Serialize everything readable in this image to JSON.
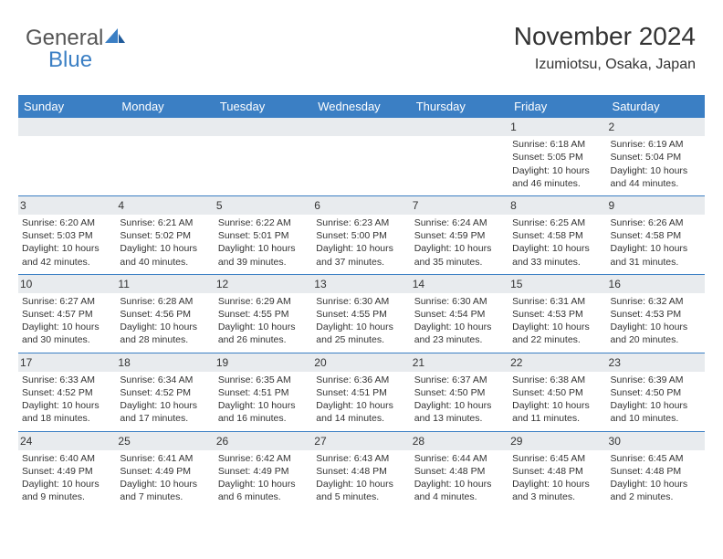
{
  "logo": {
    "text_gray": "General",
    "text_blue": "Blue"
  },
  "header": {
    "month_title": "November 2024",
    "location": "Izumiotsu, Osaka, Japan"
  },
  "day_headers": [
    "Sunday",
    "Monday",
    "Tuesday",
    "Wednesday",
    "Thursday",
    "Friday",
    "Saturday"
  ],
  "colors": {
    "header_bg": "#3b7fc4",
    "header_fg": "#ffffff",
    "row_line": "#3b7fc4",
    "daynum_bg": "#e8ebee",
    "text": "#333333",
    "logo_gray": "#555555",
    "logo_blue": "#3b7fc4",
    "background": "#ffffff"
  },
  "weeks": [
    [
      {
        "n": "",
        "sr": "",
        "ss": "",
        "dl1": "",
        "dl2": ""
      },
      {
        "n": "",
        "sr": "",
        "ss": "",
        "dl1": "",
        "dl2": ""
      },
      {
        "n": "",
        "sr": "",
        "ss": "",
        "dl1": "",
        "dl2": ""
      },
      {
        "n": "",
        "sr": "",
        "ss": "",
        "dl1": "",
        "dl2": ""
      },
      {
        "n": "",
        "sr": "",
        "ss": "",
        "dl1": "",
        "dl2": ""
      },
      {
        "n": "1",
        "sr": "Sunrise: 6:18 AM",
        "ss": "Sunset: 5:05 PM",
        "dl1": "Daylight: 10 hours",
        "dl2": "and 46 minutes."
      },
      {
        "n": "2",
        "sr": "Sunrise: 6:19 AM",
        "ss": "Sunset: 5:04 PM",
        "dl1": "Daylight: 10 hours",
        "dl2": "and 44 minutes."
      }
    ],
    [
      {
        "n": "3",
        "sr": "Sunrise: 6:20 AM",
        "ss": "Sunset: 5:03 PM",
        "dl1": "Daylight: 10 hours",
        "dl2": "and 42 minutes."
      },
      {
        "n": "4",
        "sr": "Sunrise: 6:21 AM",
        "ss": "Sunset: 5:02 PM",
        "dl1": "Daylight: 10 hours",
        "dl2": "and 40 minutes."
      },
      {
        "n": "5",
        "sr": "Sunrise: 6:22 AM",
        "ss": "Sunset: 5:01 PM",
        "dl1": "Daylight: 10 hours",
        "dl2": "and 39 minutes."
      },
      {
        "n": "6",
        "sr": "Sunrise: 6:23 AM",
        "ss": "Sunset: 5:00 PM",
        "dl1": "Daylight: 10 hours",
        "dl2": "and 37 minutes."
      },
      {
        "n": "7",
        "sr": "Sunrise: 6:24 AM",
        "ss": "Sunset: 4:59 PM",
        "dl1": "Daylight: 10 hours",
        "dl2": "and 35 minutes."
      },
      {
        "n": "8",
        "sr": "Sunrise: 6:25 AM",
        "ss": "Sunset: 4:58 PM",
        "dl1": "Daylight: 10 hours",
        "dl2": "and 33 minutes."
      },
      {
        "n": "9",
        "sr": "Sunrise: 6:26 AM",
        "ss": "Sunset: 4:58 PM",
        "dl1": "Daylight: 10 hours",
        "dl2": "and 31 minutes."
      }
    ],
    [
      {
        "n": "10",
        "sr": "Sunrise: 6:27 AM",
        "ss": "Sunset: 4:57 PM",
        "dl1": "Daylight: 10 hours",
        "dl2": "and 30 minutes."
      },
      {
        "n": "11",
        "sr": "Sunrise: 6:28 AM",
        "ss": "Sunset: 4:56 PM",
        "dl1": "Daylight: 10 hours",
        "dl2": "and 28 minutes."
      },
      {
        "n": "12",
        "sr": "Sunrise: 6:29 AM",
        "ss": "Sunset: 4:55 PM",
        "dl1": "Daylight: 10 hours",
        "dl2": "and 26 minutes."
      },
      {
        "n": "13",
        "sr": "Sunrise: 6:30 AM",
        "ss": "Sunset: 4:55 PM",
        "dl1": "Daylight: 10 hours",
        "dl2": "and 25 minutes."
      },
      {
        "n": "14",
        "sr": "Sunrise: 6:30 AM",
        "ss": "Sunset: 4:54 PM",
        "dl1": "Daylight: 10 hours",
        "dl2": "and 23 minutes."
      },
      {
        "n": "15",
        "sr": "Sunrise: 6:31 AM",
        "ss": "Sunset: 4:53 PM",
        "dl1": "Daylight: 10 hours",
        "dl2": "and 22 minutes."
      },
      {
        "n": "16",
        "sr": "Sunrise: 6:32 AM",
        "ss": "Sunset: 4:53 PM",
        "dl1": "Daylight: 10 hours",
        "dl2": "and 20 minutes."
      }
    ],
    [
      {
        "n": "17",
        "sr": "Sunrise: 6:33 AM",
        "ss": "Sunset: 4:52 PM",
        "dl1": "Daylight: 10 hours",
        "dl2": "and 18 minutes."
      },
      {
        "n": "18",
        "sr": "Sunrise: 6:34 AM",
        "ss": "Sunset: 4:52 PM",
        "dl1": "Daylight: 10 hours",
        "dl2": "and 17 minutes."
      },
      {
        "n": "19",
        "sr": "Sunrise: 6:35 AM",
        "ss": "Sunset: 4:51 PM",
        "dl1": "Daylight: 10 hours",
        "dl2": "and 16 minutes."
      },
      {
        "n": "20",
        "sr": "Sunrise: 6:36 AM",
        "ss": "Sunset: 4:51 PM",
        "dl1": "Daylight: 10 hours",
        "dl2": "and 14 minutes."
      },
      {
        "n": "21",
        "sr": "Sunrise: 6:37 AM",
        "ss": "Sunset: 4:50 PM",
        "dl1": "Daylight: 10 hours",
        "dl2": "and 13 minutes."
      },
      {
        "n": "22",
        "sr": "Sunrise: 6:38 AM",
        "ss": "Sunset: 4:50 PM",
        "dl1": "Daylight: 10 hours",
        "dl2": "and 11 minutes."
      },
      {
        "n": "23",
        "sr": "Sunrise: 6:39 AM",
        "ss": "Sunset: 4:50 PM",
        "dl1": "Daylight: 10 hours",
        "dl2": "and 10 minutes."
      }
    ],
    [
      {
        "n": "24",
        "sr": "Sunrise: 6:40 AM",
        "ss": "Sunset: 4:49 PM",
        "dl1": "Daylight: 10 hours",
        "dl2": "and 9 minutes."
      },
      {
        "n": "25",
        "sr": "Sunrise: 6:41 AM",
        "ss": "Sunset: 4:49 PM",
        "dl1": "Daylight: 10 hours",
        "dl2": "and 7 minutes."
      },
      {
        "n": "26",
        "sr": "Sunrise: 6:42 AM",
        "ss": "Sunset: 4:49 PM",
        "dl1": "Daylight: 10 hours",
        "dl2": "and 6 minutes."
      },
      {
        "n": "27",
        "sr": "Sunrise: 6:43 AM",
        "ss": "Sunset: 4:48 PM",
        "dl1": "Daylight: 10 hours",
        "dl2": "and 5 minutes."
      },
      {
        "n": "28",
        "sr": "Sunrise: 6:44 AM",
        "ss": "Sunset: 4:48 PM",
        "dl1": "Daylight: 10 hours",
        "dl2": "and 4 minutes."
      },
      {
        "n": "29",
        "sr": "Sunrise: 6:45 AM",
        "ss": "Sunset: 4:48 PM",
        "dl1": "Daylight: 10 hours",
        "dl2": "and 3 minutes."
      },
      {
        "n": "30",
        "sr": "Sunrise: 6:45 AM",
        "ss": "Sunset: 4:48 PM",
        "dl1": "Daylight: 10 hours",
        "dl2": "and 2 minutes."
      }
    ]
  ]
}
